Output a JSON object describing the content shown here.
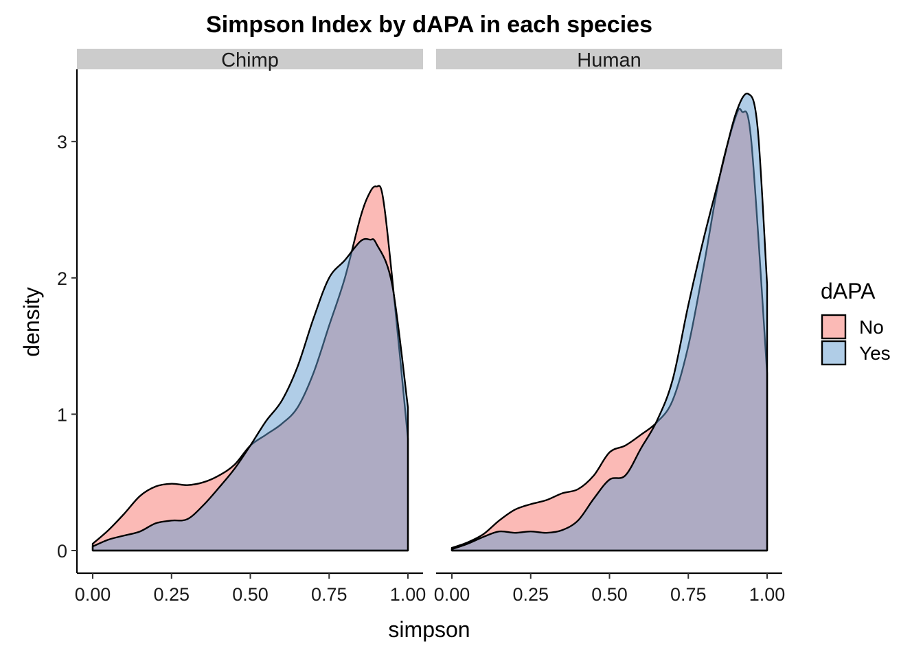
{
  "chart_data": {
    "type": "area",
    "title": "Simpson Index by dAPA in each species",
    "xlabel": "simpson",
    "ylabel": "density",
    "xlim": [
      0,
      1
    ],
    "ylim": [
      0,
      3.4
    ],
    "x_ticks": [
      0,
      0.25,
      0.5,
      0.75,
      1
    ],
    "x_tick_labels": [
      "0.00",
      "0.25",
      "0.50",
      "0.75",
      "1.00"
    ],
    "y_ticks": [
      0,
      1,
      2,
      3
    ],
    "y_tick_labels": [
      "0",
      "1",
      "2",
      "3"
    ],
    "grid": false,
    "legend": {
      "title": "dAPA",
      "placement": "right",
      "entries": [
        {
          "name": "No",
          "color": "#F8766D"
        },
        {
          "name": "Yes",
          "color": "#619CCF"
        }
      ]
    },
    "facets": [
      {
        "label": "Chimp",
        "series": [
          {
            "name": "No",
            "x": [
              0,
              0.05,
              0.1,
              0.15,
              0.2,
              0.25,
              0.3,
              0.35,
              0.4,
              0.45,
              0.5,
              0.55,
              0.6,
              0.65,
              0.7,
              0.75,
              0.8,
              0.85,
              0.88,
              0.9,
              0.92,
              0.95,
              1
            ],
            "y": [
              0.05,
              0.15,
              0.27,
              0.4,
              0.47,
              0.49,
              0.48,
              0.5,
              0.55,
              0.63,
              0.77,
              0.85,
              0.93,
              1.05,
              1.3,
              1.65,
              2.0,
              2.45,
              2.63,
              2.67,
              2.6,
              2.0,
              0.82
            ]
          },
          {
            "name": "Yes",
            "x": [
              0,
              0.05,
              0.1,
              0.15,
              0.2,
              0.25,
              0.3,
              0.35,
              0.4,
              0.45,
              0.5,
              0.55,
              0.6,
              0.65,
              0.7,
              0.75,
              0.8,
              0.85,
              0.88,
              0.9,
              0.95,
              1
            ],
            "y": [
              0.03,
              0.08,
              0.11,
              0.14,
              0.2,
              0.22,
              0.23,
              0.33,
              0.46,
              0.6,
              0.77,
              0.95,
              1.1,
              1.35,
              1.7,
              2.0,
              2.13,
              2.27,
              2.28,
              2.25,
              1.95,
              1.05
            ]
          }
        ]
      },
      {
        "label": "Human",
        "series": [
          {
            "name": "No",
            "x": [
              0,
              0.05,
              0.1,
              0.15,
              0.2,
              0.25,
              0.3,
              0.35,
              0.4,
              0.45,
              0.5,
              0.55,
              0.6,
              0.65,
              0.7,
              0.75,
              0.8,
              0.85,
              0.9,
              0.92,
              0.95,
              1
            ],
            "y": [
              0.02,
              0.06,
              0.12,
              0.22,
              0.3,
              0.34,
              0.37,
              0.42,
              0.45,
              0.55,
              0.72,
              0.77,
              0.85,
              0.94,
              1.1,
              1.5,
              2.1,
              2.75,
              3.18,
              3.22,
              3.0,
              1.3
            ]
          },
          {
            "name": "Yes",
            "x": [
              0,
              0.05,
              0.1,
              0.15,
              0.2,
              0.25,
              0.3,
              0.35,
              0.4,
              0.45,
              0.5,
              0.55,
              0.6,
              0.65,
              0.7,
              0.75,
              0.8,
              0.85,
              0.9,
              0.94,
              0.97,
              1
            ],
            "y": [
              0.01,
              0.05,
              0.1,
              0.14,
              0.13,
              0.14,
              0.13,
              0.15,
              0.22,
              0.38,
              0.52,
              0.55,
              0.75,
              0.95,
              1.25,
              1.8,
              2.3,
              2.75,
              3.2,
              3.35,
              3.1,
              1.95
            ]
          }
        ]
      }
    ]
  }
}
